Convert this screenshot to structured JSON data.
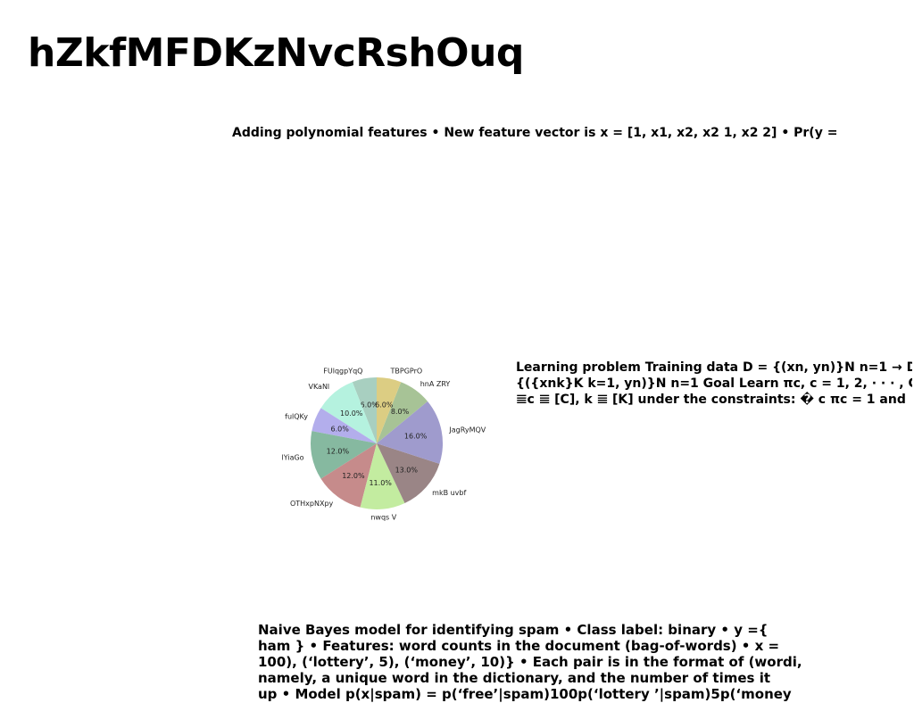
{
  "page": {
    "title": "hZkfMFDKzNvcRshOuq"
  },
  "text_blocks": {
    "polynomial": "Adding polynomial features • New feature vector is x = [1, x1, x2, x2 1, x2 2] • Pr(y =",
    "learning_lines": [
      "Learning problem Training data D = {(xn, yn)}N n=1 → D",
      "{({xnk}K k=1, yn)}N n=1 Goal Learn πc, c = 1, 2, · · · , C, and",
      "𝌆c 𝌆 [C], k 𝌆 [K] under the constraints: � c πc = 1 and"
    ],
    "naive_bayes_lines": [
      "Naive Bayes model for identifying spam • Class label: binary • y ={",
      "ham } • Features: word counts in the document (bag-of-words) • x =",
      "100), (‘lottery’, 5), (‘money’, 10)} • Each pair is in the format of (wordi,",
      "namely, a unique word in the dictionary, and the number of times it",
      "up • Model p(x|spam) = p(‘free’|spam)100p(‘lottery ’|spam)5p(‘money"
    ]
  },
  "chart_data": {
    "type": "pie",
    "title": "",
    "start_angle_deg": 90,
    "direction": "counterclockwise",
    "slices": [
      {
        "label": "FUlqgpYqQ",
        "value": 6.0,
        "display": "6.0%",
        "color": "#a8cfc0"
      },
      {
        "label": "VKaNl",
        "value": 10.0,
        "display": "10.0%",
        "color": "#b5f2df"
      },
      {
        "label": "fulQKy",
        "value": 6.0,
        "display": "6.0%",
        "color": "#b3aeec"
      },
      {
        "label": "lYiaGo",
        "value": 12.0,
        "display": "12.0%",
        "color": "#86b9a0"
      },
      {
        "label": "OTHxpNXpy",
        "value": 12.0,
        "display": "12.0%",
        "color": "#c68b8b"
      },
      {
        "label": "nwqs V",
        "value": 11.0,
        "display": "11.0%",
        "color": "#c3eca0"
      },
      {
        "label": "mkB uvbf",
        "value": 13.0,
        "display": "13.0%",
        "color": "#9a8586"
      },
      {
        "label": "JagRyMQV",
        "value": 16.0,
        "display": "16.0%",
        "color": "#9f9bcd"
      },
      {
        "label": "hnA ZRY",
        "value": 8.0,
        "display": "8.0%",
        "color": "#a7c396"
      },
      {
        "label": "TBPGPrO",
        "value": 6.0,
        "display": "6.0%",
        "color": "#dccd83"
      }
    ]
  }
}
